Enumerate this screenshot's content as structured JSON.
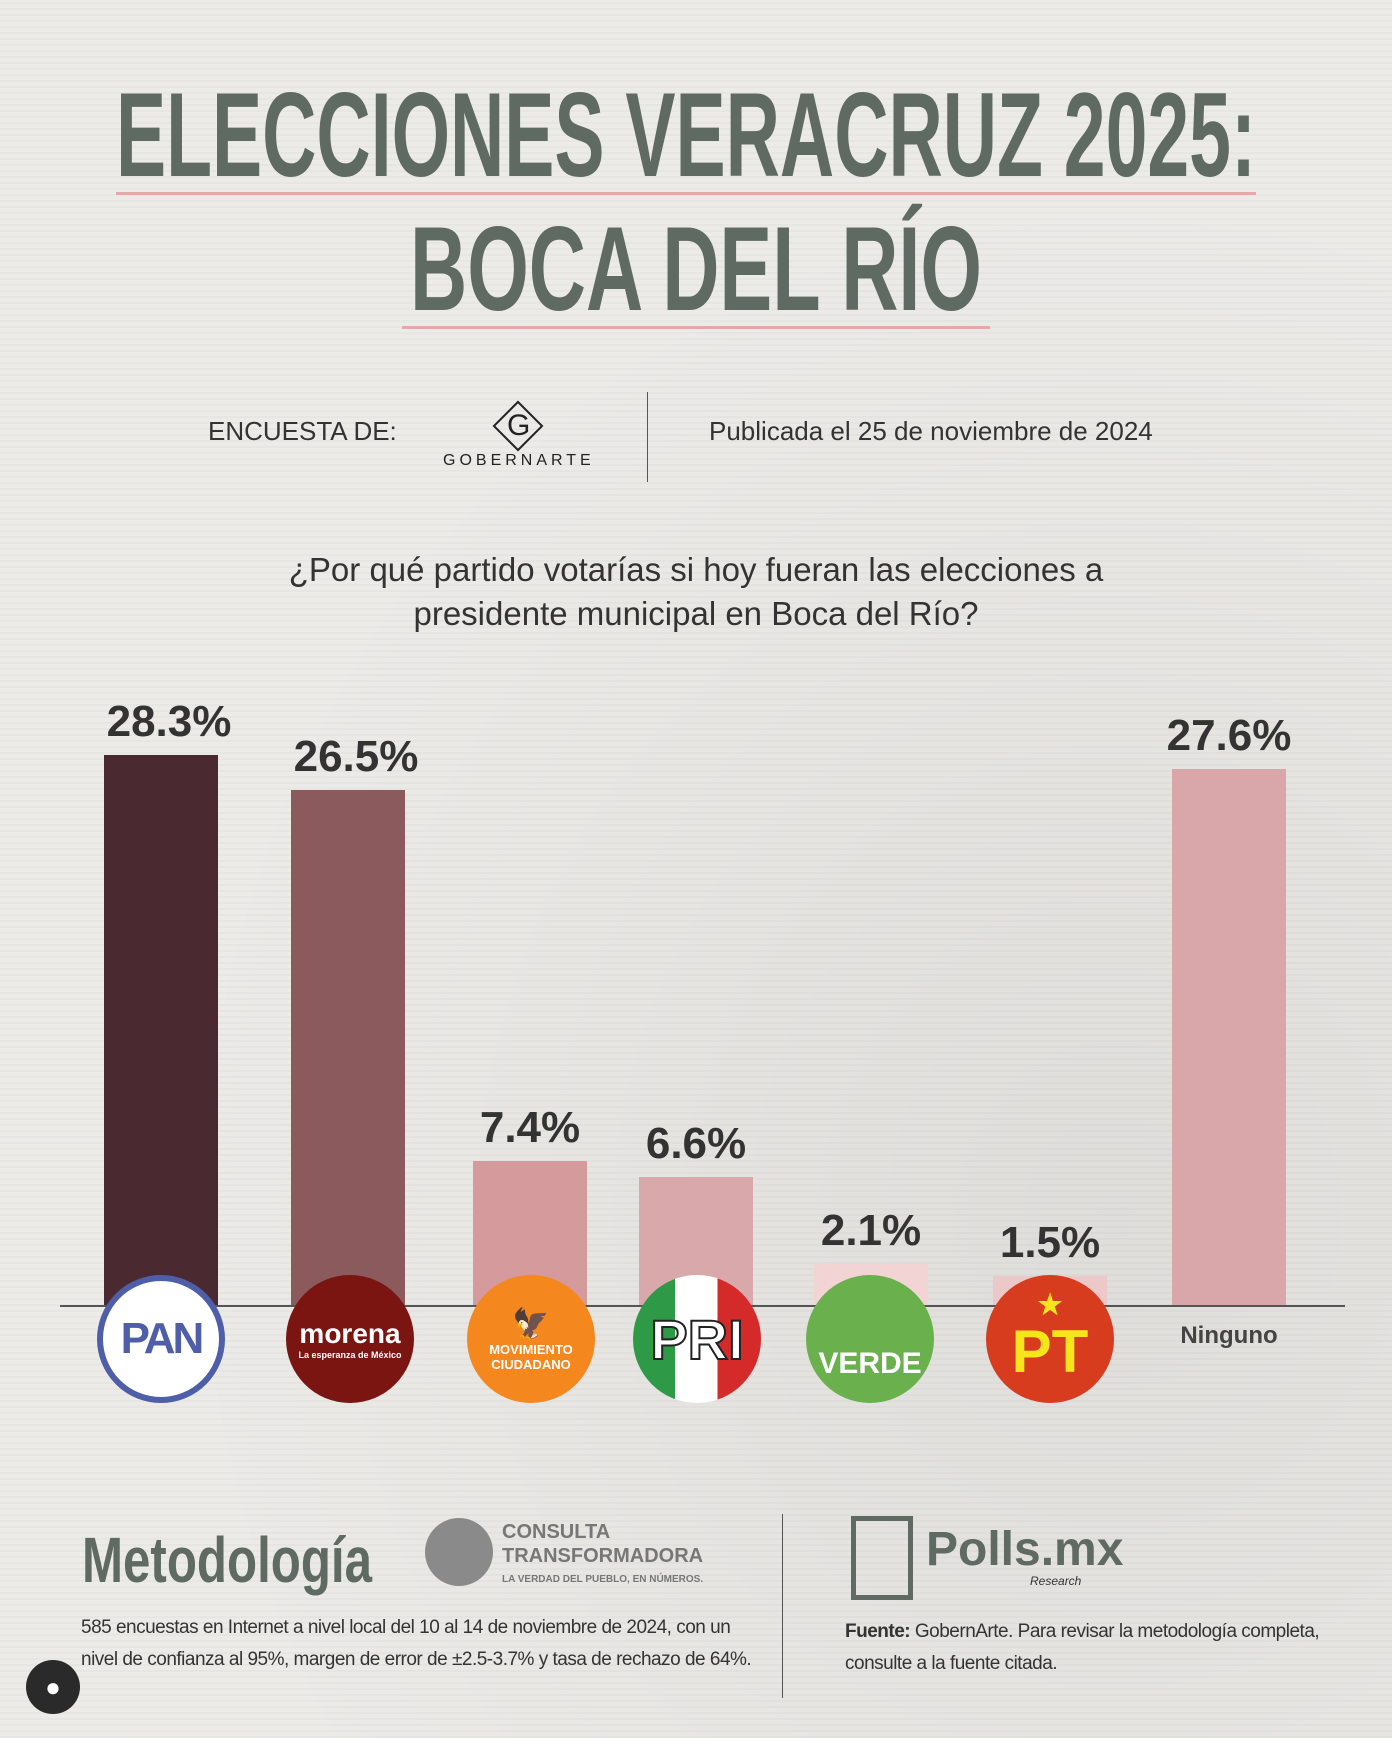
{
  "title": {
    "line1": "ELECCIONES VERACRUZ 2025:",
    "line2": "BOCA DEL RÍO"
  },
  "header": {
    "survey_label": "ENCUESTA DE:",
    "pollster": "GOBERNARTE",
    "published": "Publicada el 25 de noviembre de 2024"
  },
  "colors": {
    "title": "#5f6b62",
    "underline": "#e6a7aa"
  },
  "chart_data": {
    "type": "bar",
    "title": "¿Por qué partido votarías si hoy fueran las elecciones a presidente municipal en Boca del Río?",
    "categories": [
      "PAN",
      "morena",
      "Movimiento Ciudadano",
      "PRI",
      "Verde",
      "PT",
      "Ninguno"
    ],
    "values": [
      28.3,
      26.5,
      7.4,
      6.6,
      2.1,
      1.5,
      27.6
    ],
    "labels": [
      "28.3%",
      "26.5%",
      "7.4%",
      "6.6%",
      "2.1%",
      "1.5%",
      "27.6%"
    ],
    "colors": [
      "#4a2a30",
      "#8a5a5c",
      "#d49a9c",
      "#d8a8aa",
      "#f2d4d4",
      "#ecc8c9",
      "#d9a7aa"
    ],
    "ylim": [
      0,
      30
    ],
    "xlabel": "",
    "ylabel": ""
  },
  "logos": {
    "pan": "PAN",
    "morena": "morena",
    "morena_sub": "La esperanza de México",
    "mc_top": "MOVIMIENTO",
    "mc_bottom": "CIUDADANO",
    "pri": "PRI",
    "verde": "VERDE",
    "pt": "PT",
    "ninguno": "Ninguno"
  },
  "footer": {
    "heading": "Metodología",
    "ct_line1": "CONSULTA",
    "ct_line2": "TRANSFORMADORA",
    "ct_tagline": "LA VERDAD DEL PUEBLO, EN NÚMEROS.",
    "methodology": "585 encuestas en Internet a nivel local del 10 al 14 de noviembre de 2024, con un nivel de confianza al 95%, margen de error de ±2.5-3.7% y tasa de rechazo de 64%.",
    "polls_brand": "Polls.mx",
    "polls_sub": "Research",
    "source_label": "Fuente:",
    "source_text": " GobernArte. Para revisar la metodología completa, consulte a la fuente citada."
  }
}
